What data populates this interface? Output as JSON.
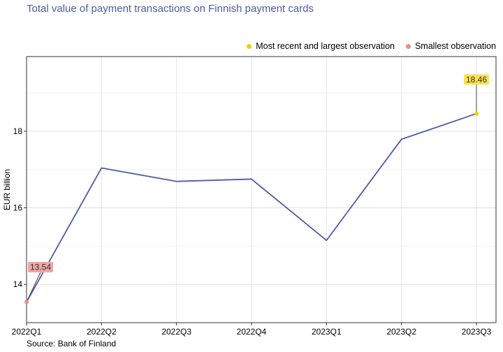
{
  "chart_data": {
    "type": "line",
    "title": "Total value of payment transactions on Finnish payment cards",
    "ylabel": "EUR billion",
    "xlabel": "",
    "source": "Source: Bank of Finland",
    "categories": [
      "2022Q1",
      "2022Q2",
      "2022Q3",
      "2022Q4",
      "2023Q1",
      "2023Q2",
      "2023Q3"
    ],
    "series": [
      {
        "values": [
          13.54,
          17.04,
          16.69,
          16.75,
          15.15,
          17.79,
          18.46
        ]
      }
    ],
    "ylim": [
      13.0,
      19.95
    ],
    "yticks": [
      14,
      16,
      18
    ],
    "grid": true,
    "legend": {
      "placement": "top-right",
      "items": [
        {
          "label": "Most recent and largest observation",
          "color": "#f0d000"
        },
        {
          "label": "Smallest observation",
          "color": "#f08a8a"
        }
      ]
    },
    "annotations": [
      {
        "category": "2023Q3",
        "text": "18.46",
        "kind": "largest",
        "label_y": 19.35
      },
      {
        "category": "2022Q1",
        "text": "13.54",
        "kind": "smallest",
        "label_y": 14.45
      }
    ],
    "colors": {
      "line": "#4e5ba6",
      "largest_fill": "#fbe24f",
      "largest_point": "#f0d000",
      "smallest_fill": "#f1a5a5",
      "smallest_point": "#f08a8a"
    }
  }
}
